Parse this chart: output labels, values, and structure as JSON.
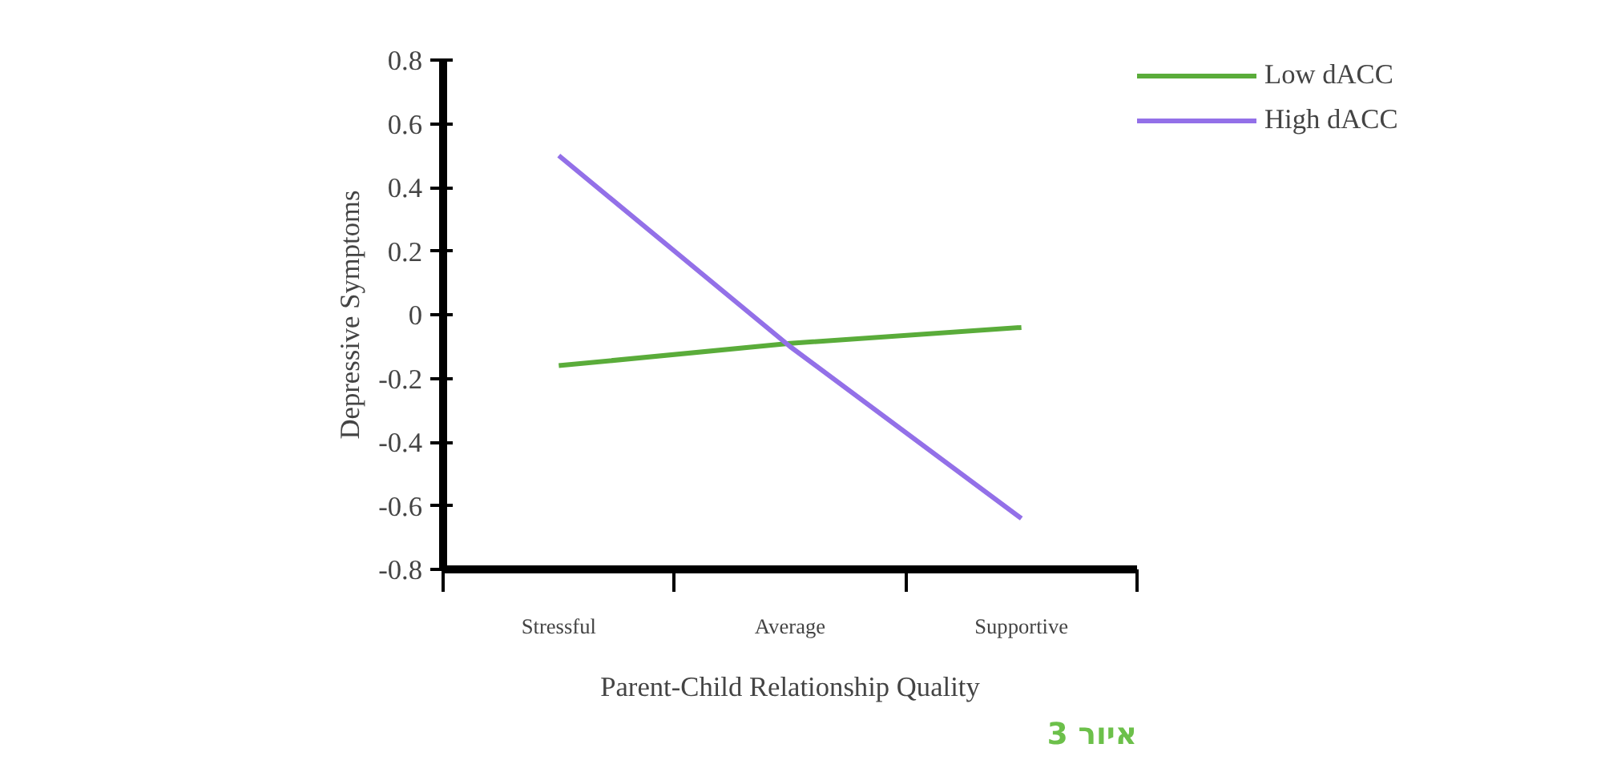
{
  "chart_data": {
    "type": "line",
    "xlabel": "Parent-Child Relationship Quality",
    "ylabel": "Depressive Symptoms",
    "categories": [
      "Stressful",
      "Average",
      "Supportive"
    ],
    "series": [
      {
        "name": "Low dACC",
        "color": "#5aac3a",
        "values": [
          -0.16,
          -0.09,
          -0.04
        ]
      },
      {
        "name": "High dACC",
        "color": "#9370e8",
        "values": [
          0.5,
          -0.1,
          -0.64
        ]
      }
    ],
    "ylim": [
      -0.8,
      0.8
    ],
    "yticks": [
      0.8,
      0.6,
      0.4,
      0.2,
      0,
      -0.2,
      -0.4,
      -0.6,
      -0.8
    ],
    "legend": "top right",
    "grid": false,
    "marker": "none",
    "line_style": "solid",
    "annotations": [
      "איור 3"
    ]
  }
}
